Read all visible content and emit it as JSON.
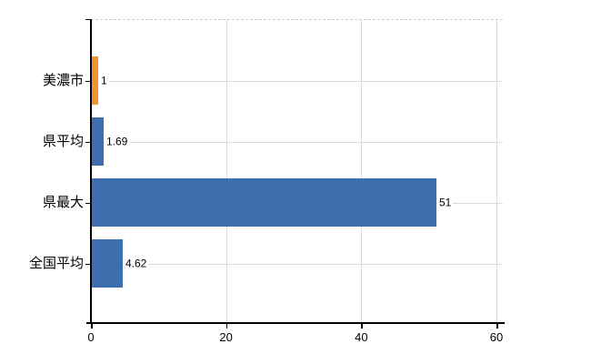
{
  "chart_data": {
    "type": "bar",
    "orientation": "horizontal",
    "title": "",
    "categories": [
      "美濃市",
      "県平均",
      "県最大",
      "全国平均"
    ],
    "values": [
      1,
      1.69,
      51,
      4.62
    ],
    "value_labels": [
      "1",
      "1.69",
      "51",
      "4.62"
    ],
    "series": [
      {
        "name": "値",
        "values": [
          1,
          1.69,
          51,
          4.62
        ]
      }
    ],
    "bar_colors": [
      "#EE9431",
      "#3E6EAE",
      "#3E6EAE",
      "#3E6EAE"
    ],
    "highlight_color": "#EE9431",
    "default_color": "#3E6EAE",
    "x_ticks": [
      0,
      20,
      40,
      60
    ],
    "x_tick_labels": [
      "0",
      "20",
      "40",
      "60"
    ],
    "xlim": [
      0,
      61
    ],
    "ylabel": "",
    "xlabel": "",
    "grid": true,
    "gridline_color": "#DBDBDB",
    "axis_color": "#000000",
    "legend": "none"
  }
}
